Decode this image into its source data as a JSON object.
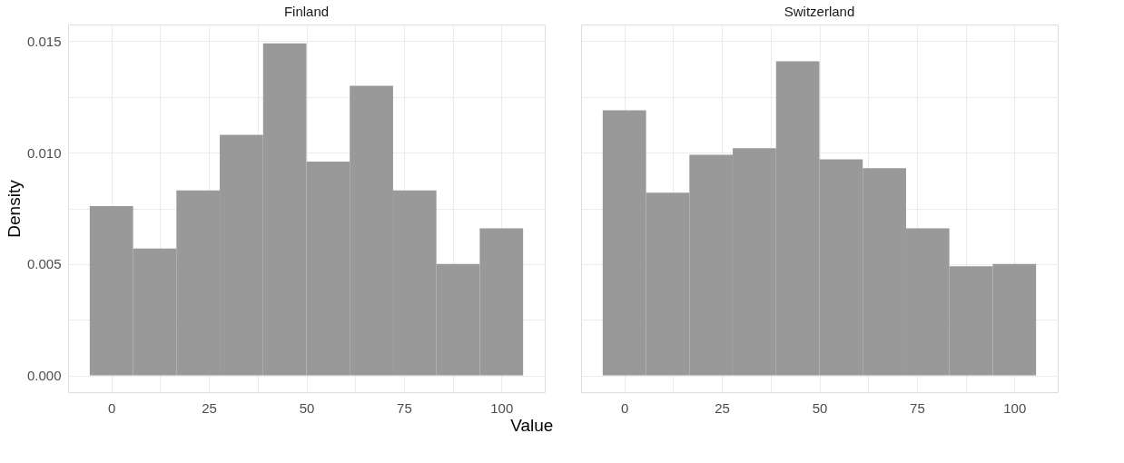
{
  "chart_data": [
    {
      "type": "histogram",
      "title": "Finland",
      "xlabel": "Value",
      "ylabel": "Density",
      "color": "#999999",
      "bins": [
        -5.56,
        5.56,
        16.67,
        27.78,
        38.89,
        50,
        61.11,
        72.22,
        83.33,
        94.44,
        105.56
      ],
      "values": [
        0.0076,
        0.0057,
        0.0083,
        0.0108,
        0.0149,
        0.0096,
        0.013,
        0.0083,
        0.005,
        0.0066
      ],
      "xlim": [
        -11.11,
        111.11
      ],
      "ylim": [
        -0.00075,
        0.01575
      ],
      "xticks": [
        0,
        {
          "value": 12.5,
          "label": null
        },
        25,
        {
          "value": 37.5,
          "label": null
        },
        50,
        {
          "value": 62.5,
          "label": null
        },
        75,
        {
          "value": 87.5,
          "label": null
        },
        100
      ],
      "yticks": [
        {
          "value": 0,
          "label": "0.000"
        },
        {
          "value": 0.0025,
          "label": null
        },
        {
          "value": 0.005,
          "label": "0.005"
        },
        {
          "value": 0.0075,
          "label": null
        },
        {
          "value": 0.01,
          "label": "0.010"
        },
        {
          "value": 0.0125,
          "label": null
        },
        {
          "value": 0.015,
          "label": "0.015"
        }
      ],
      "grid": true
    },
    {
      "type": "histogram",
      "title": "Switzerland",
      "color": "#999999",
      "bins": [
        -5.56,
        5.56,
        16.67,
        27.78,
        38.89,
        50,
        61.11,
        72.22,
        83.33,
        94.44,
        105.56
      ],
      "values": [
        0.0119,
        0.0082,
        0.0099,
        0.0102,
        0.0141,
        0.0097,
        0.0093,
        0.0066,
        0.0049,
        0.005
      ],
      "xlim": [
        -11.11,
        111.11
      ],
      "ylim": [
        -0.00075,
        0.01575
      ],
      "xticks": [
        0,
        {
          "value": 12.5,
          "label": null
        },
        25,
        {
          "value": 37.5,
          "label": null
        },
        50,
        {
          "value": 62.5,
          "label": null
        },
        75,
        {
          "value": 87.5,
          "label": null
        },
        100
      ],
      "yticks": [
        {
          "value": 0,
          "label": null
        },
        {
          "value": 0.0025,
          "label": null
        },
        {
          "value": 0.005,
          "label": null
        },
        {
          "value": 0.0075,
          "label": null
        },
        {
          "value": 0.01,
          "label": null
        },
        {
          "value": 0.0125,
          "label": null
        },
        {
          "value": 0.015,
          "label": null
        }
      ],
      "grid": true,
      "tick_labels": "x"
    }
  ]
}
